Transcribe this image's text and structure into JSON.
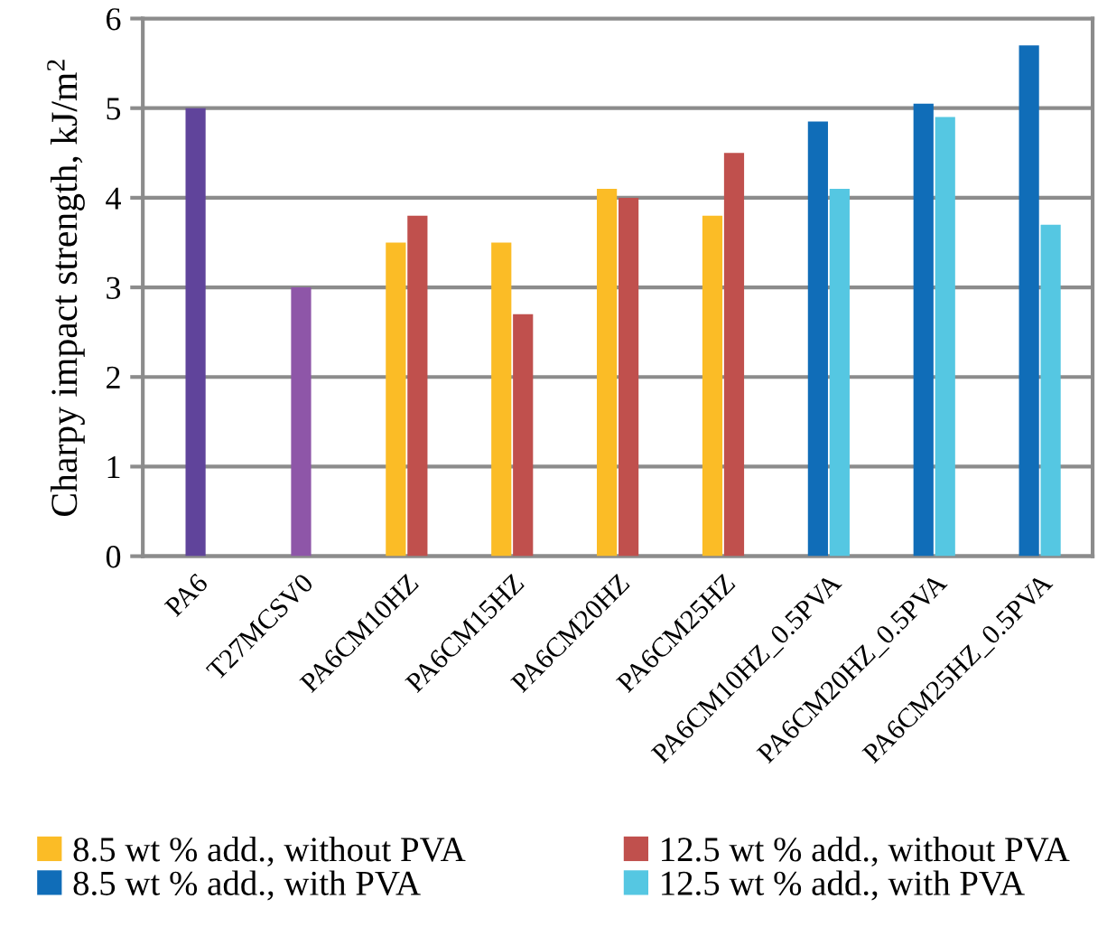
{
  "chart_data": {
    "type": "bar",
    "ylabel": "Charpy impact strength, kJ/m$^{2}$",
    "categories": [
      "PA6",
      "T27MCSV0",
      "PA6CM10HZ",
      "PA6CM15HZ",
      "PA6CM20HZ",
      "PA6CM25HZ",
      "PA6CM10HZ_0.5PVA",
      "PA6CM20HZ_0.5PVA",
      "PA6CM25HZ_0.5PVA"
    ],
    "series": [
      {
        "colors": [
          "#60449b",
          "#8e56a8",
          null,
          null,
          null,
          null,
          null,
          null,
          null
        ],
        "values": [
          5.0,
          3.0,
          null,
          null,
          null,
          null,
          null,
          null,
          null
        ]
      },
      {
        "name": "8.5 wt % add., without PVA",
        "color": "#fbbc26",
        "values": [
          null,
          null,
          3.5,
          3.5,
          4.1,
          3.8,
          null,
          null,
          null
        ]
      },
      {
        "name": "12.5 wt % add., without PVA",
        "color": "#c0504d",
        "values": [
          null,
          null,
          3.8,
          2.7,
          4.0,
          4.5,
          null,
          null,
          null
        ]
      },
      {
        "name": "8.5 wt % add., with PVA",
        "color": "#106db8",
        "values": [
          null,
          null,
          null,
          null,
          null,
          null,
          4.85,
          5.05,
          5.7
        ]
      },
      {
        "name": "12.5 wt % add., with PVA",
        "color": "#55c7e2",
        "values": [
          null,
          null,
          null,
          null,
          null,
          null,
          4.1,
          4.9,
          3.7
        ]
      }
    ],
    "ylim": [
      0,
      6
    ],
    "yticks": [
      0,
      1,
      2,
      3,
      4,
      5,
      6
    ],
    "grid": "y",
    "legend": "bottom"
  }
}
